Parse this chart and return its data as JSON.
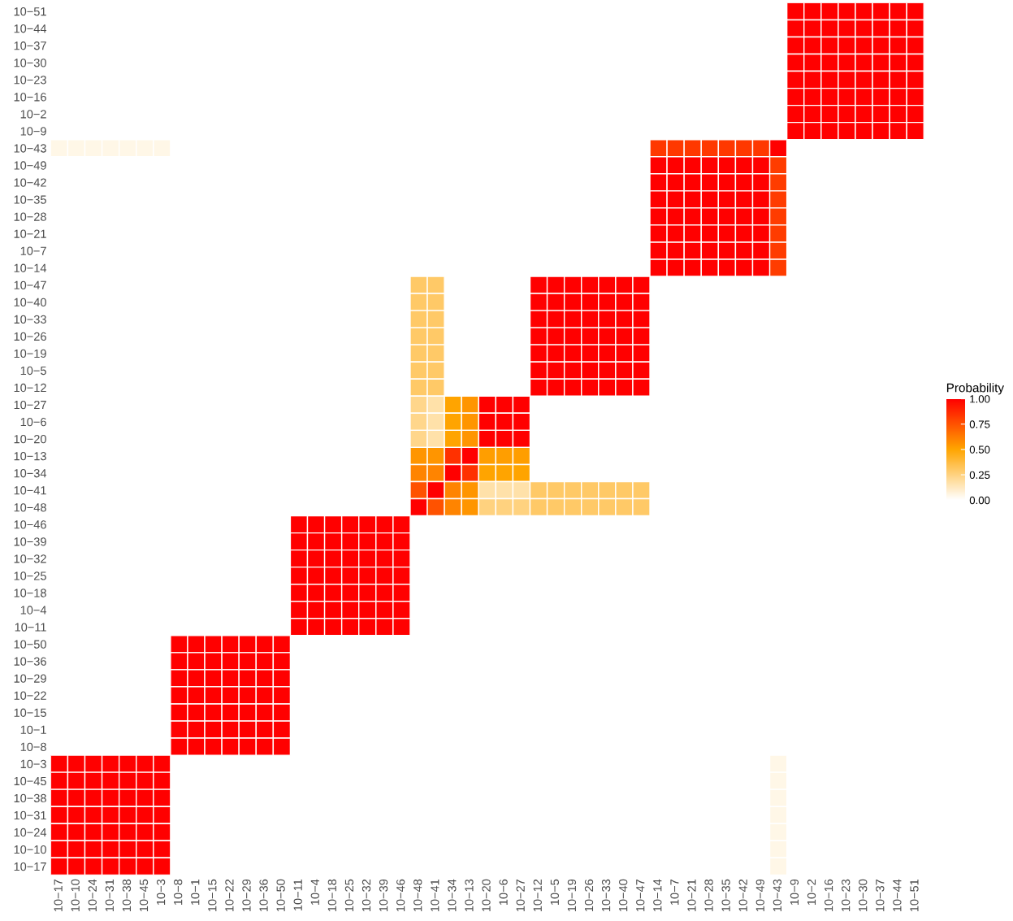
{
  "chart_data": {
    "type": "heatmap",
    "clabel": "Probability",
    "clim": [
      0,
      1
    ],
    "cticks": [
      {
        "value": 0,
        "label": "0.00"
      },
      {
        "value": 0.25,
        "label": "0.25"
      },
      {
        "value": 0.5,
        "label": "0.50"
      },
      {
        "value": 0.75,
        "label": "0.75"
      },
      {
        "value": 1,
        "label": "1.00"
      }
    ],
    "colors": [
      "#ffffff",
      "#ffa500",
      "#ff0000"
    ],
    "grid": false,
    "categories": [
      "10−17",
      "10−10",
      "10−24",
      "10−31",
      "10−38",
      "10−45",
      "10−3",
      "10−8",
      "10−1",
      "10−15",
      "10−22",
      "10−29",
      "10−36",
      "10−50",
      "10−11",
      "10−4",
      "10−18",
      "10−25",
      "10−32",
      "10−39",
      "10−46",
      "10−48",
      "10−41",
      "10−34",
      "10−13",
      "10−20",
      "10−6",
      "10−27",
      "10−12",
      "10−5",
      "10−19",
      "10−26",
      "10−33",
      "10−40",
      "10−47",
      "10−14",
      "10−7",
      "10−21",
      "10−28",
      "10−35",
      "10−42",
      "10−49",
      "10−43",
      "10−9",
      "10−2",
      "10−16",
      "10−23",
      "10−30",
      "10−37",
      "10−44",
      "10−51"
    ],
    "y_categories": [
      "10−51",
      "10−44",
      "10−37",
      "10−30",
      "10−23",
      "10−16",
      "10−2",
      "10−9",
      "10−43",
      "10−49",
      "10−42",
      "10−35",
      "10−28",
      "10−21",
      "10−7",
      "10−14",
      "10−47",
      "10−40",
      "10−33",
      "10−26",
      "10−19",
      "10−5",
      "10−12",
      "10−27",
      "10−6",
      "10−20",
      "10−13",
      "10−34",
      "10−41",
      "10−48",
      "10−46",
      "10−39",
      "10−32",
      "10−25",
      "10−18",
      "10−4",
      "10−11",
      "10−50",
      "10−36",
      "10−29",
      "10−22",
      "10−15",
      "10−1",
      "10−8",
      "10−3",
      "10−45",
      "10−38",
      "10−31",
      "10−24",
      "10−10",
      "10−17"
    ],
    "cells": [
      [
        null,
        null,
        null,
        null,
        null,
        null,
        null,
        null,
        null,
        null,
        null,
        null,
        null,
        null,
        null,
        null,
        null,
        null,
        null,
        null,
        null,
        null,
        null,
        null,
        null,
        null,
        null,
        null,
        null,
        null,
        null,
        null,
        null,
        null,
        null,
        null,
        null,
        null,
        null,
        null,
        null,
        null,
        null,
        1,
        1,
        1,
        1,
        1,
        1,
        1,
        1
      ],
      [
        null,
        null,
        null,
        null,
        null,
        null,
        null,
        null,
        null,
        null,
        null,
        null,
        null,
        null,
        null,
        null,
        null,
        null,
        null,
        null,
        null,
        null,
        null,
        null,
        null,
        null,
        null,
        null,
        null,
        null,
        null,
        null,
        null,
        null,
        null,
        null,
        null,
        null,
        null,
        null,
        null,
        null,
        null,
        1,
        1,
        1,
        1,
        1,
        1,
        1,
        1
      ],
      [
        null,
        null,
        null,
        null,
        null,
        null,
        null,
        null,
        null,
        null,
        null,
        null,
        null,
        null,
        null,
        null,
        null,
        null,
        null,
        null,
        null,
        null,
        null,
        null,
        null,
        null,
        null,
        null,
        null,
        null,
        null,
        null,
        null,
        null,
        null,
        null,
        null,
        null,
        null,
        null,
        null,
        null,
        null,
        1,
        1,
        1,
        1,
        1,
        1,
        1,
        1
      ],
      [
        null,
        null,
        null,
        null,
        null,
        null,
        null,
        null,
        null,
        null,
        null,
        null,
        null,
        null,
        null,
        null,
        null,
        null,
        null,
        null,
        null,
        null,
        null,
        null,
        null,
        null,
        null,
        null,
        null,
        null,
        null,
        null,
        null,
        null,
        null,
        null,
        null,
        null,
        null,
        null,
        null,
        null,
        null,
        1,
        1,
        1,
        1,
        1,
        1,
        1,
        1
      ],
      [
        null,
        null,
        null,
        null,
        null,
        null,
        null,
        null,
        null,
        null,
        null,
        null,
        null,
        null,
        null,
        null,
        null,
        null,
        null,
        null,
        null,
        null,
        null,
        null,
        null,
        null,
        null,
        null,
        null,
        null,
        null,
        null,
        null,
        null,
        null,
        null,
        null,
        null,
        null,
        null,
        null,
        null,
        null,
        1,
        1,
        1,
        1,
        1,
        1,
        1,
        1
      ],
      [
        null,
        null,
        null,
        null,
        null,
        null,
        null,
        null,
        null,
        null,
        null,
        null,
        null,
        null,
        null,
        null,
        null,
        null,
        null,
        null,
        null,
        null,
        null,
        null,
        null,
        null,
        null,
        null,
        null,
        null,
        null,
        null,
        null,
        null,
        null,
        null,
        null,
        null,
        null,
        null,
        null,
        null,
        null,
        1,
        1,
        1,
        1,
        1,
        1,
        1,
        1
      ],
      [
        null,
        null,
        null,
        null,
        null,
        null,
        null,
        null,
        null,
        null,
        null,
        null,
        null,
        null,
        null,
        null,
        null,
        null,
        null,
        null,
        null,
        null,
        null,
        null,
        null,
        null,
        null,
        null,
        null,
        null,
        null,
        null,
        null,
        null,
        null,
        null,
        null,
        null,
        null,
        null,
        null,
        null,
        null,
        1,
        1,
        1,
        1,
        1,
        1,
        1,
        1
      ],
      [
        null,
        null,
        null,
        null,
        null,
        null,
        null,
        null,
        null,
        null,
        null,
        null,
        null,
        null,
        null,
        null,
        null,
        null,
        null,
        null,
        null,
        null,
        null,
        null,
        null,
        null,
        null,
        null,
        null,
        null,
        null,
        null,
        null,
        null,
        null,
        null,
        null,
        null,
        null,
        null,
        null,
        null,
        null,
        1,
        1,
        1,
        1,
        1,
        1,
        1,
        1
      ],
      [
        0.05,
        0.05,
        0.05,
        0.05,
        0.05,
        0.05,
        0.05,
        null,
        null,
        null,
        null,
        null,
        null,
        null,
        null,
        null,
        null,
        null,
        null,
        null,
        null,
        null,
        null,
        null,
        null,
        null,
        null,
        null,
        null,
        null,
        null,
        null,
        null,
        null,
        null,
        0.83,
        0.83,
        0.83,
        0.83,
        0.83,
        0.83,
        0.83,
        1,
        null,
        null,
        null,
        null,
        null,
        null,
        null,
        null
      ],
      [
        null,
        null,
        null,
        null,
        null,
        null,
        null,
        null,
        null,
        null,
        null,
        null,
        null,
        null,
        null,
        null,
        null,
        null,
        null,
        null,
        null,
        null,
        null,
        null,
        null,
        null,
        null,
        null,
        null,
        null,
        null,
        null,
        null,
        null,
        null,
        1,
        1,
        1,
        1,
        1,
        1,
        1,
        0.82,
        null,
        null,
        null,
        null,
        null,
        null,
        null,
        null
      ],
      [
        null,
        null,
        null,
        null,
        null,
        null,
        null,
        null,
        null,
        null,
        null,
        null,
        null,
        null,
        null,
        null,
        null,
        null,
        null,
        null,
        null,
        null,
        null,
        null,
        null,
        null,
        null,
        null,
        null,
        null,
        null,
        null,
        null,
        null,
        null,
        1,
        1,
        1,
        1,
        1,
        1,
        1,
        0.82,
        null,
        null,
        null,
        null,
        null,
        null,
        null,
        null
      ],
      [
        null,
        null,
        null,
        null,
        null,
        null,
        null,
        null,
        null,
        null,
        null,
        null,
        null,
        null,
        null,
        null,
        null,
        null,
        null,
        null,
        null,
        null,
        null,
        null,
        null,
        null,
        null,
        null,
        null,
        null,
        null,
        null,
        null,
        null,
        null,
        1,
        1,
        1,
        1,
        1,
        1,
        1,
        0.82,
        null,
        null,
        null,
        null,
        null,
        null,
        null,
        null
      ],
      [
        null,
        null,
        null,
        null,
        null,
        null,
        null,
        null,
        null,
        null,
        null,
        null,
        null,
        null,
        null,
        null,
        null,
        null,
        null,
        null,
        null,
        null,
        null,
        null,
        null,
        null,
        null,
        null,
        null,
        null,
        null,
        null,
        null,
        null,
        null,
        1,
        1,
        1,
        1,
        1,
        1,
        1,
        0.82,
        null,
        null,
        null,
        null,
        null,
        null,
        null,
        null
      ],
      [
        null,
        null,
        null,
        null,
        null,
        null,
        null,
        null,
        null,
        null,
        null,
        null,
        null,
        null,
        null,
        null,
        null,
        null,
        null,
        null,
        null,
        null,
        null,
        null,
        null,
        null,
        null,
        null,
        null,
        null,
        null,
        null,
        null,
        null,
        null,
        1,
        1,
        1,
        1,
        1,
        1,
        1,
        0.82,
        null,
        null,
        null,
        null,
        null,
        null,
        null,
        null
      ],
      [
        null,
        null,
        null,
        null,
        null,
        null,
        null,
        null,
        null,
        null,
        null,
        null,
        null,
        null,
        null,
        null,
        null,
        null,
        null,
        null,
        null,
        null,
        null,
        null,
        null,
        null,
        null,
        null,
        null,
        null,
        null,
        null,
        null,
        null,
        null,
        1,
        1,
        1,
        1,
        1,
        1,
        1,
        0.82,
        null,
        null,
        null,
        null,
        null,
        null,
        null,
        null
      ],
      [
        null,
        null,
        null,
        null,
        null,
        null,
        null,
        null,
        null,
        null,
        null,
        null,
        null,
        null,
        null,
        null,
        null,
        null,
        null,
        null,
        null,
        null,
        null,
        null,
        null,
        null,
        null,
        null,
        null,
        null,
        null,
        null,
        null,
        null,
        null,
        1,
        1,
        1,
        1,
        1,
        1,
        1,
        0.82,
        null,
        null,
        null,
        null,
        null,
        null,
        null,
        null
      ],
      [
        null,
        null,
        null,
        null,
        null,
        null,
        null,
        null,
        null,
        null,
        null,
        null,
        null,
        null,
        null,
        null,
        null,
        null,
        null,
        null,
        null,
        0.3,
        0.3,
        null,
        null,
        null,
        null,
        null,
        1,
        1,
        1,
        1,
        1,
        1,
        1,
        null,
        null,
        null,
        null,
        null,
        null,
        null,
        null,
        null,
        null,
        null,
        null,
        null,
        null,
        null,
        null
      ],
      [
        null,
        null,
        null,
        null,
        null,
        null,
        null,
        null,
        null,
        null,
        null,
        null,
        null,
        null,
        null,
        null,
        null,
        null,
        null,
        null,
        null,
        0.3,
        0.3,
        null,
        null,
        null,
        null,
        null,
        1,
        1,
        1,
        1,
        1,
        1,
        1,
        null,
        null,
        null,
        null,
        null,
        null,
        null,
        null,
        null,
        null,
        null,
        null,
        null,
        null,
        null,
        null
      ],
      [
        null,
        null,
        null,
        null,
        null,
        null,
        null,
        null,
        null,
        null,
        null,
        null,
        null,
        null,
        null,
        null,
        null,
        null,
        null,
        null,
        null,
        0.3,
        0.3,
        null,
        null,
        null,
        null,
        null,
        1,
        1,
        1,
        1,
        1,
        1,
        1,
        null,
        null,
        null,
        null,
        null,
        null,
        null,
        null,
        null,
        null,
        null,
        null,
        null,
        null,
        null,
        null
      ],
      [
        null,
        null,
        null,
        null,
        null,
        null,
        null,
        null,
        null,
        null,
        null,
        null,
        null,
        null,
        null,
        null,
        null,
        null,
        null,
        null,
        null,
        0.3,
        0.3,
        null,
        null,
        null,
        null,
        null,
        1,
        1,
        1,
        1,
        1,
        1,
        1,
        null,
        null,
        null,
        null,
        null,
        null,
        null,
        null,
        null,
        null,
        null,
        null,
        null,
        null,
        null,
        null
      ],
      [
        null,
        null,
        null,
        null,
        null,
        null,
        null,
        null,
        null,
        null,
        null,
        null,
        null,
        null,
        null,
        null,
        null,
        null,
        null,
        null,
        null,
        0.3,
        0.3,
        null,
        null,
        null,
        null,
        null,
        1,
        1,
        1,
        1,
        1,
        1,
        1,
        null,
        null,
        null,
        null,
        null,
        null,
        null,
        null,
        null,
        null,
        null,
        null,
        null,
        null,
        null,
        null
      ],
      [
        null,
        null,
        null,
        null,
        null,
        null,
        null,
        null,
        null,
        null,
        null,
        null,
        null,
        null,
        null,
        null,
        null,
        null,
        null,
        null,
        null,
        0.3,
        0.3,
        null,
        null,
        null,
        null,
        null,
        1,
        1,
        1,
        1,
        1,
        1,
        1,
        null,
        null,
        null,
        null,
        null,
        null,
        null,
        null,
        null,
        null,
        null,
        null,
        null,
        null,
        null,
        null
      ],
      [
        null,
        null,
        null,
        null,
        null,
        null,
        null,
        null,
        null,
        null,
        null,
        null,
        null,
        null,
        null,
        null,
        null,
        null,
        null,
        null,
        null,
        0.3,
        0.3,
        null,
        null,
        null,
        null,
        null,
        1,
        1,
        1,
        1,
        1,
        1,
        1,
        null,
        null,
        null,
        null,
        null,
        null,
        null,
        null,
        null,
        null,
        null,
        null,
        null,
        null,
        null,
        null
      ],
      [
        null,
        null,
        null,
        null,
        null,
        null,
        null,
        null,
        null,
        null,
        null,
        null,
        null,
        null,
        null,
        null,
        null,
        null,
        null,
        null,
        null,
        0.23,
        0.17,
        0.5,
        0.55,
        1,
        1,
        1,
        null,
        null,
        null,
        null,
        null,
        null,
        null,
        null,
        null,
        null,
        null,
        null,
        null,
        null,
        null,
        null,
        null,
        null,
        null,
        null,
        null,
        null,
        null
      ],
      [
        null,
        null,
        null,
        null,
        null,
        null,
        null,
        null,
        null,
        null,
        null,
        null,
        null,
        null,
        null,
        null,
        null,
        null,
        null,
        null,
        null,
        0.23,
        0.17,
        0.5,
        0.55,
        1,
        1,
        1,
        null,
        null,
        null,
        null,
        null,
        null,
        null,
        null,
        null,
        null,
        null,
        null,
        null,
        null,
        null,
        null,
        null,
        null,
        null,
        null,
        null,
        null,
        null
      ],
      [
        null,
        null,
        null,
        null,
        null,
        null,
        null,
        null,
        null,
        null,
        null,
        null,
        null,
        null,
        null,
        null,
        null,
        null,
        null,
        null,
        null,
        0.23,
        0.17,
        0.5,
        0.55,
        1,
        1,
        1,
        null,
        null,
        null,
        null,
        null,
        null,
        null,
        null,
        null,
        null,
        null,
        null,
        null,
        null,
        null,
        null,
        null,
        null,
        null,
        null,
        null,
        null,
        null
      ],
      [
        null,
        null,
        null,
        null,
        null,
        null,
        null,
        null,
        null,
        null,
        null,
        null,
        null,
        null,
        null,
        null,
        null,
        null,
        null,
        null,
        null,
        0.55,
        0.55,
        0.85,
        1,
        0.52,
        0.52,
        0.52,
        null,
        null,
        null,
        null,
        null,
        null,
        null,
        null,
        null,
        null,
        null,
        null,
        null,
        null,
        null,
        null,
        null,
        null,
        null,
        null,
        null,
        null,
        null
      ],
      [
        null,
        null,
        null,
        null,
        null,
        null,
        null,
        null,
        null,
        null,
        null,
        null,
        null,
        null,
        null,
        null,
        null,
        null,
        null,
        null,
        null,
        0.6,
        0.6,
        1,
        0.85,
        0.5,
        0.5,
        0.5,
        null,
        null,
        null,
        null,
        null,
        null,
        null,
        null,
        null,
        null,
        null,
        null,
        null,
        null,
        null,
        null,
        null,
        null,
        null,
        null,
        null,
        null,
        null
      ],
      [
        null,
        null,
        null,
        null,
        null,
        null,
        null,
        null,
        null,
        null,
        null,
        null,
        null,
        null,
        null,
        null,
        null,
        null,
        null,
        null,
        null,
        0.75,
        1,
        0.6,
        0.55,
        0.17,
        0.17,
        0.17,
        0.3,
        0.3,
        0.3,
        0.3,
        0.3,
        0.3,
        0.3,
        null,
        null,
        null,
        null,
        null,
        null,
        null,
        null,
        null,
        null,
        null,
        null,
        null,
        null,
        null,
        null
      ],
      [
        null,
        null,
        null,
        null,
        null,
        null,
        null,
        null,
        null,
        null,
        null,
        null,
        null,
        null,
        null,
        null,
        null,
        null,
        null,
        null,
        null,
        1,
        0.75,
        0.6,
        0.55,
        0.25,
        0.25,
        0.25,
        0.3,
        0.3,
        0.3,
        0.3,
        0.3,
        0.3,
        0.3,
        null,
        null,
        null,
        null,
        null,
        null,
        null,
        null,
        null,
        null,
        null,
        null,
        null,
        null,
        null,
        null
      ],
      [
        null,
        null,
        null,
        null,
        null,
        null,
        null,
        null,
        null,
        null,
        null,
        null,
        null,
        null,
        1,
        1,
        1,
        1,
        1,
        1,
        1,
        null,
        null,
        null,
        null,
        null,
        null,
        null,
        null,
        null,
        null,
        null,
        null,
        null,
        null,
        null,
        null,
        null,
        null,
        null,
        null,
        null,
        null,
        null,
        null,
        null,
        null,
        null,
        null,
        null,
        null
      ],
      [
        null,
        null,
        null,
        null,
        null,
        null,
        null,
        null,
        null,
        null,
        null,
        null,
        null,
        null,
        1,
        1,
        1,
        1,
        1,
        1,
        1,
        null,
        null,
        null,
        null,
        null,
        null,
        null,
        null,
        null,
        null,
        null,
        null,
        null,
        null,
        null,
        null,
        null,
        null,
        null,
        null,
        null,
        null,
        null,
        null,
        null,
        null,
        null,
        null,
        null,
        null
      ],
      [
        null,
        null,
        null,
        null,
        null,
        null,
        null,
        null,
        null,
        null,
        null,
        null,
        null,
        null,
        1,
        1,
        1,
        1,
        1,
        1,
        1,
        null,
        null,
        null,
        null,
        null,
        null,
        null,
        null,
        null,
        null,
        null,
        null,
        null,
        null,
        null,
        null,
        null,
        null,
        null,
        null,
        null,
        null,
        null,
        null,
        null,
        null,
        null,
        null,
        null,
        null
      ],
      [
        null,
        null,
        null,
        null,
        null,
        null,
        null,
        null,
        null,
        null,
        null,
        null,
        null,
        null,
        1,
        1,
        1,
        1,
        1,
        1,
        1,
        null,
        null,
        null,
        null,
        null,
        null,
        null,
        null,
        null,
        null,
        null,
        null,
        null,
        null,
        null,
        null,
        null,
        null,
        null,
        null,
        null,
        null,
        null,
        null,
        null,
        null,
        null,
        null,
        null,
        null
      ],
      [
        null,
        null,
        null,
        null,
        null,
        null,
        null,
        null,
        null,
        null,
        null,
        null,
        null,
        null,
        1,
        1,
        1,
        1,
        1,
        1,
        1,
        null,
        null,
        null,
        null,
        null,
        null,
        null,
        null,
        null,
        null,
        null,
        null,
        null,
        null,
        null,
        null,
        null,
        null,
        null,
        null,
        null,
        null,
        null,
        null,
        null,
        null,
        null,
        null,
        null,
        null
      ],
      [
        null,
        null,
        null,
        null,
        null,
        null,
        null,
        null,
        null,
        null,
        null,
        null,
        null,
        null,
        1,
        1,
        1,
        1,
        1,
        1,
        1,
        null,
        null,
        null,
        null,
        null,
        null,
        null,
        null,
        null,
        null,
        null,
        null,
        null,
        null,
        null,
        null,
        null,
        null,
        null,
        null,
        null,
        null,
        null,
        null,
        null,
        null,
        null,
        null,
        null,
        null
      ],
      [
        null,
        null,
        null,
        null,
        null,
        null,
        null,
        null,
        null,
        null,
        null,
        null,
        null,
        null,
        1,
        1,
        1,
        1,
        1,
        1,
        1,
        null,
        null,
        null,
        null,
        null,
        null,
        null,
        null,
        null,
        null,
        null,
        null,
        null,
        null,
        null,
        null,
        null,
        null,
        null,
        null,
        null,
        null,
        null,
        null,
        null,
        null,
        null,
        null,
        null,
        null
      ],
      [
        null,
        null,
        null,
        null,
        null,
        null,
        null,
        1,
        1,
        1,
        1,
        1,
        1,
        1,
        null,
        null,
        null,
        null,
        null,
        null,
        null,
        null,
        null,
        null,
        null,
        null,
        null,
        null,
        null,
        null,
        null,
        null,
        null,
        null,
        null,
        null,
        null,
        null,
        null,
        null,
        null,
        null,
        null,
        null,
        null,
        null,
        null,
        null,
        null,
        null,
        null
      ],
      [
        null,
        null,
        null,
        null,
        null,
        null,
        null,
        1,
        1,
        1,
        1,
        1,
        1,
        1,
        null,
        null,
        null,
        null,
        null,
        null,
        null,
        null,
        null,
        null,
        null,
        null,
        null,
        null,
        null,
        null,
        null,
        null,
        null,
        null,
        null,
        null,
        null,
        null,
        null,
        null,
        null,
        null,
        null,
        null,
        null,
        null,
        null,
        null,
        null,
        null,
        null
      ],
      [
        null,
        null,
        null,
        null,
        null,
        null,
        null,
        1,
        1,
        1,
        1,
        1,
        1,
        1,
        null,
        null,
        null,
        null,
        null,
        null,
        null,
        null,
        null,
        null,
        null,
        null,
        null,
        null,
        null,
        null,
        null,
        null,
        null,
        null,
        null,
        null,
        null,
        null,
        null,
        null,
        null,
        null,
        null,
        null,
        null,
        null,
        null,
        null,
        null,
        null,
        null
      ],
      [
        null,
        null,
        null,
        null,
        null,
        null,
        null,
        1,
        1,
        1,
        1,
        1,
        1,
        1,
        null,
        null,
        null,
        null,
        null,
        null,
        null,
        null,
        null,
        null,
        null,
        null,
        null,
        null,
        null,
        null,
        null,
        null,
        null,
        null,
        null,
        null,
        null,
        null,
        null,
        null,
        null,
        null,
        null,
        null,
        null,
        null,
        null,
        null,
        null,
        null,
        null
      ],
      [
        null,
        null,
        null,
        null,
        null,
        null,
        null,
        1,
        1,
        1,
        1,
        1,
        1,
        1,
        null,
        null,
        null,
        null,
        null,
        null,
        null,
        null,
        null,
        null,
        null,
        null,
        null,
        null,
        null,
        null,
        null,
        null,
        null,
        null,
        null,
        null,
        null,
        null,
        null,
        null,
        null,
        null,
        null,
        null,
        null,
        null,
        null,
        null,
        null,
        null,
        null
      ],
      [
        null,
        null,
        null,
        null,
        null,
        null,
        null,
        1,
        1,
        1,
        1,
        1,
        1,
        1,
        null,
        null,
        null,
        null,
        null,
        null,
        null,
        null,
        null,
        null,
        null,
        null,
        null,
        null,
        null,
        null,
        null,
        null,
        null,
        null,
        null,
        null,
        null,
        null,
        null,
        null,
        null,
        null,
        null,
        null,
        null,
        null,
        null,
        null,
        null,
        null,
        null
      ],
      [
        null,
        null,
        null,
        null,
        null,
        null,
        null,
        1,
        1,
        1,
        1,
        1,
        1,
        1,
        null,
        null,
        null,
        null,
        null,
        null,
        null,
        null,
        null,
        null,
        null,
        null,
        null,
        null,
        null,
        null,
        null,
        null,
        null,
        null,
        null,
        null,
        null,
        null,
        null,
        null,
        null,
        null,
        null,
        null,
        null,
        null,
        null,
        null,
        null,
        null,
        null
      ],
      [
        1,
        1,
        1,
        1,
        1,
        1,
        1,
        null,
        null,
        null,
        null,
        null,
        null,
        null,
        null,
        null,
        null,
        null,
        null,
        null,
        null,
        null,
        null,
        null,
        null,
        null,
        null,
        null,
        null,
        null,
        null,
        null,
        null,
        null,
        null,
        null,
        null,
        null,
        null,
        null,
        null,
        null,
        0.05,
        null,
        null,
        null,
        null,
        null,
        null,
        null,
        null
      ],
      [
        1,
        1,
        1,
        1,
        1,
        1,
        1,
        null,
        null,
        null,
        null,
        null,
        null,
        null,
        null,
        null,
        null,
        null,
        null,
        null,
        null,
        null,
        null,
        null,
        null,
        null,
        null,
        null,
        null,
        null,
        null,
        null,
        null,
        null,
        null,
        null,
        null,
        null,
        null,
        null,
        null,
        null,
        0.05,
        null,
        null,
        null,
        null,
        null,
        null,
        null,
        null
      ],
      [
        1,
        1,
        1,
        1,
        1,
        1,
        1,
        null,
        null,
        null,
        null,
        null,
        null,
        null,
        null,
        null,
        null,
        null,
        null,
        null,
        null,
        null,
        null,
        null,
        null,
        null,
        null,
        null,
        null,
        null,
        null,
        null,
        null,
        null,
        null,
        null,
        null,
        null,
        null,
        null,
        null,
        null,
        0.05,
        null,
        null,
        null,
        null,
        null,
        null,
        null,
        null
      ],
      [
        1,
        1,
        1,
        1,
        1,
        1,
        1,
        null,
        null,
        null,
        null,
        null,
        null,
        null,
        null,
        null,
        null,
        null,
        null,
        null,
        null,
        null,
        null,
        null,
        null,
        null,
        null,
        null,
        null,
        null,
        null,
        null,
        null,
        null,
        null,
        null,
        null,
        null,
        null,
        null,
        null,
        null,
        0.05,
        null,
        null,
        null,
        null,
        null,
        null,
        null,
        null
      ],
      [
        1,
        1,
        1,
        1,
        1,
        1,
        1,
        null,
        null,
        null,
        null,
        null,
        null,
        null,
        null,
        null,
        null,
        null,
        null,
        null,
        null,
        null,
        null,
        null,
        null,
        null,
        null,
        null,
        null,
        null,
        null,
        null,
        null,
        null,
        null,
        null,
        null,
        null,
        null,
        null,
        null,
        null,
        0.05,
        null,
        null,
        null,
        null,
        null,
        null,
        null,
        null
      ],
      [
        1,
        1,
        1,
        1,
        1,
        1,
        1,
        null,
        null,
        null,
        null,
        null,
        null,
        null,
        null,
        null,
        null,
        null,
        null,
        null,
        null,
        null,
        null,
        null,
        null,
        null,
        null,
        null,
        null,
        null,
        null,
        null,
        null,
        null,
        null,
        null,
        null,
        null,
        null,
        null,
        null,
        null,
        0.05,
        null,
        null,
        null,
        null,
        null,
        null,
        null,
        null
      ],
      [
        1,
        1,
        1,
        1,
        1,
        1,
        1,
        null,
        null,
        null,
        null,
        null,
        null,
        null,
        null,
        null,
        null,
        null,
        null,
        null,
        null,
        null,
        null,
        null,
        null,
        null,
        null,
        null,
        null,
        null,
        null,
        null,
        null,
        null,
        null,
        null,
        null,
        null,
        null,
        null,
        null,
        null,
        0.05,
        null,
        null,
        null,
        null,
        null,
        null,
        null,
        null
      ]
    ]
  }
}
